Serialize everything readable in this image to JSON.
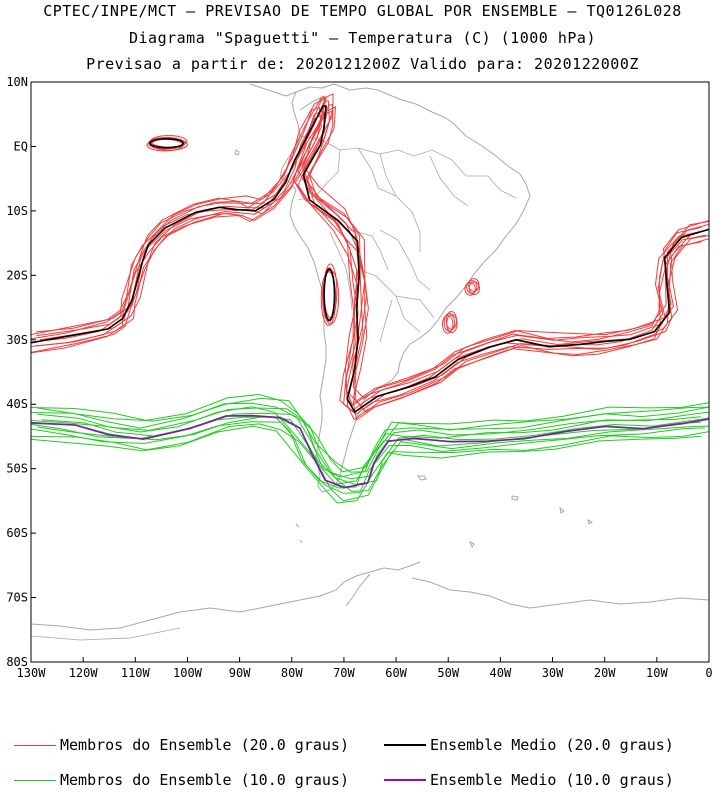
{
  "titles": {
    "line1": "CPTEC/INPE/MCT — PREVISAO DE TEMPO GLOBAL POR ENSEMBLE — TQ0126L028",
    "line2": "Diagrama \"Spaguetti\" — Temperatura (C) (1000 hPa)",
    "line3": "Previsao a partir de: 2020121200Z  Valido para: 2020122000Z"
  },
  "axes": {
    "lat_labels": [
      "10N",
      "EQ",
      "10S",
      "20S",
      "30S",
      "40S",
      "50S",
      "60S",
      "70S",
      "80S"
    ],
    "lon_labels": [
      "130W",
      "120W",
      "110W",
      "100W",
      "90W",
      "80W",
      "70W",
      "60W",
      "50W",
      "40W",
      "30W",
      "20W",
      "10W",
      "0"
    ],
    "lat_range": [
      10,
      -80
    ],
    "lon_range": [
      -130,
      0
    ]
  },
  "legend": [
    {
      "label": "Membros do Ensemble (20.0 graus)",
      "color": "#f03c3c"
    },
    {
      "label": "Ensemble Medio (20.0 graus)",
      "color": "#000000"
    },
    {
      "label": "Membros do Ensemble (10.0 graus)",
      "color": "#22cc22"
    },
    {
      "label": "Ensemble Medio (10.0 graus)",
      "color": "#8b10b8"
    }
  ],
  "colors": {
    "members20": "#f03c3c",
    "mean20": "#000000",
    "members10": "#22cc22",
    "mean10": "#8b10b8",
    "coast": "#a8a8a8"
  }
}
